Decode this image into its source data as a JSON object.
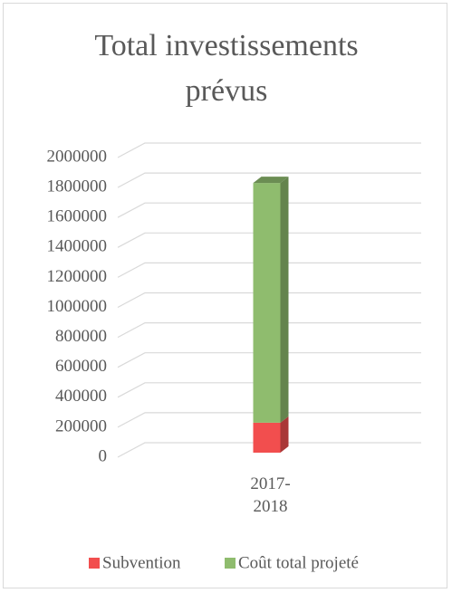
{
  "chart_data": {
    "type": "bar3d_stacked",
    "title": "Total investissements prévus",
    "categories": [
      "2017-2018"
    ],
    "series": [
      {
        "name": "Subvention",
        "color": "#f24e4e",
        "values": [
          200000
        ]
      },
      {
        "name": "Coût total projeté",
        "color": "#8fbc6e",
        "values": [
          1600000
        ]
      }
    ],
    "ylim": [
      0,
      2000000
    ],
    "yticks": [
      0,
      200000,
      400000,
      600000,
      800000,
      1000000,
      1200000,
      1400000,
      1600000,
      1800000,
      2000000
    ],
    "grid": true,
    "legend": "bottom"
  }
}
